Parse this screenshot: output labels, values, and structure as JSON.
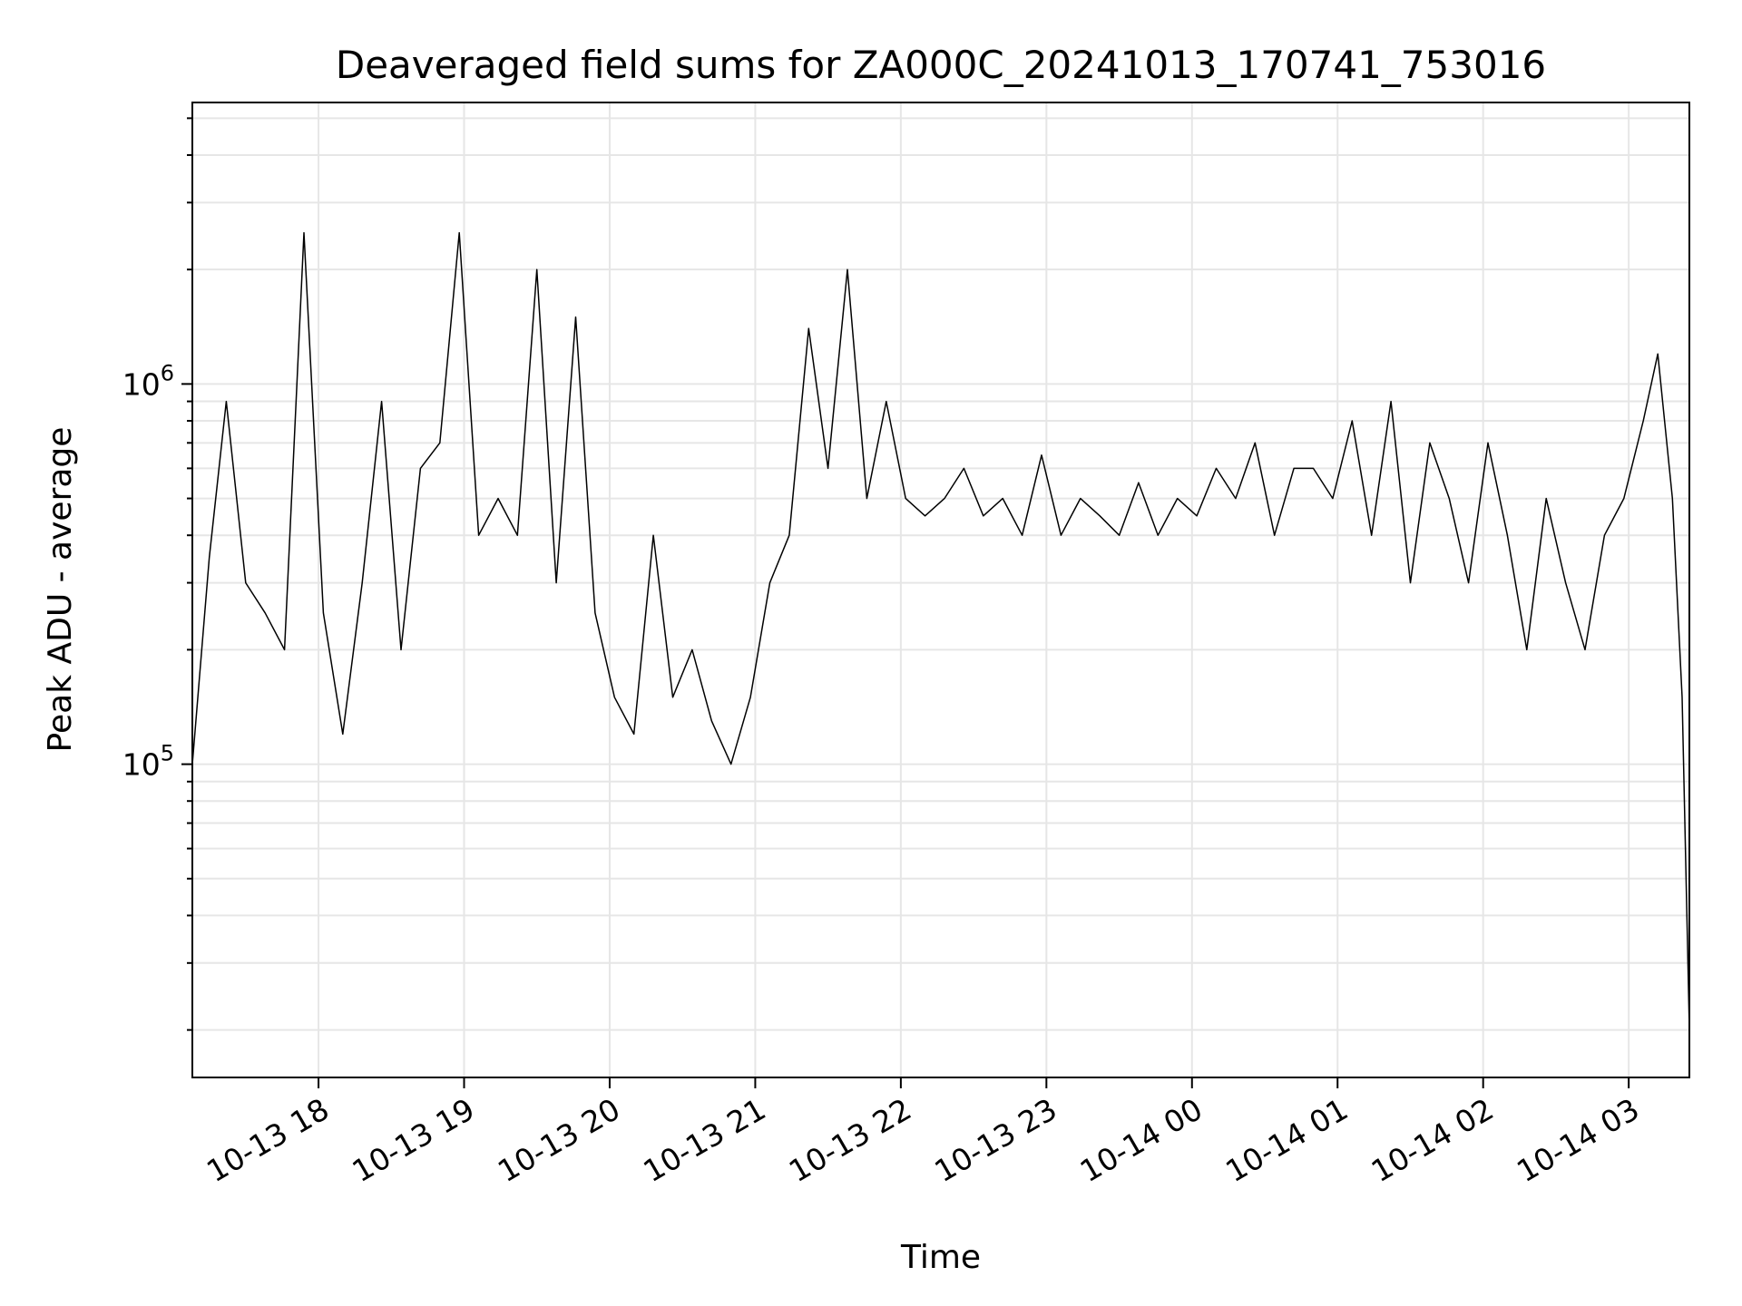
{
  "chart_data": {
    "type": "line",
    "title": "Deaveraged field sums for ZA000C_20241013_170741_753016",
    "xlabel": "Time",
    "ylabel": "Peak ADU - average",
    "yscale": "log",
    "grid": true,
    "x_range": [
      "2024-10-13 17:08",
      "2024-10-14 03:25"
    ],
    "ylim": [
      15000,
      5500000
    ],
    "x_ticks": [
      {
        "value": "2024-10-13 18:00",
        "label": "10-13 18"
      },
      {
        "value": "2024-10-13 19:00",
        "label": "10-13 19"
      },
      {
        "value": "2024-10-13 20:00",
        "label": "10-13 20"
      },
      {
        "value": "2024-10-13 21:00",
        "label": "10-13 21"
      },
      {
        "value": "2024-10-13 22:00",
        "label": "10-13 22"
      },
      {
        "value": "2024-10-13 23:00",
        "label": "10-13 23"
      },
      {
        "value": "2024-10-14 00:00",
        "label": "10-14 00"
      },
      {
        "value": "2024-10-14 01:00",
        "label": "10-14 01"
      },
      {
        "value": "2024-10-14 02:00",
        "label": "10-14 02"
      },
      {
        "value": "2024-10-14 03:00",
        "label": "10-14 03"
      }
    ],
    "y_ticks": [
      {
        "value": 100000,
        "base": "10",
        "exp": "5"
      },
      {
        "value": 1000000,
        "base": "10",
        "exp": "6"
      }
    ],
    "line_color": "#000000",
    "grid_color": "#e6e6e6",
    "series": [
      {
        "x": [
          "2024-10-13 17:08",
          "2024-10-13 17:15",
          "2024-10-13 17:22",
          "2024-10-13 17:30",
          "2024-10-13 17:38",
          "2024-10-13 17:46",
          "2024-10-13 17:54",
          "2024-10-13 18:02",
          "2024-10-13 18:10",
          "2024-10-13 18:18",
          "2024-10-13 18:26",
          "2024-10-13 18:34",
          "2024-10-13 18:42",
          "2024-10-13 18:50",
          "2024-10-13 18:58",
          "2024-10-13 19:06",
          "2024-10-13 19:14",
          "2024-10-13 19:22",
          "2024-10-13 19:30",
          "2024-10-13 19:38",
          "2024-10-13 19:46",
          "2024-10-13 19:54",
          "2024-10-13 20:02",
          "2024-10-13 20:10",
          "2024-10-13 20:18",
          "2024-10-13 20:26",
          "2024-10-13 20:34",
          "2024-10-13 20:42",
          "2024-10-13 20:50",
          "2024-10-13 20:58",
          "2024-10-13 21:06",
          "2024-10-13 21:14",
          "2024-10-13 21:22",
          "2024-10-13 21:30",
          "2024-10-13 21:38",
          "2024-10-13 21:46",
          "2024-10-13 21:54",
          "2024-10-13 22:02",
          "2024-10-13 22:10",
          "2024-10-13 22:18",
          "2024-10-13 22:26",
          "2024-10-13 22:34",
          "2024-10-13 22:42",
          "2024-10-13 22:50",
          "2024-10-13 22:58",
          "2024-10-13 23:06",
          "2024-10-13 23:14",
          "2024-10-13 23:22",
          "2024-10-13 23:30",
          "2024-10-13 23:38",
          "2024-10-13 23:46",
          "2024-10-13 23:54",
          "2024-10-14 00:02",
          "2024-10-14 00:10",
          "2024-10-14 00:18",
          "2024-10-14 00:26",
          "2024-10-14 00:34",
          "2024-10-14 00:42",
          "2024-10-14 00:50",
          "2024-10-14 00:58",
          "2024-10-14 01:06",
          "2024-10-14 01:14",
          "2024-10-14 01:22",
          "2024-10-14 01:30",
          "2024-10-14 01:38",
          "2024-10-14 01:46",
          "2024-10-14 01:54",
          "2024-10-14 02:02",
          "2024-10-14 02:10",
          "2024-10-14 02:18",
          "2024-10-14 02:26",
          "2024-10-14 02:34",
          "2024-10-14 02:42",
          "2024-10-14 02:50",
          "2024-10-14 02:58",
          "2024-10-14 03:06",
          "2024-10-14 03:12",
          "2024-10-14 03:18",
          "2024-10-14 03:22",
          "2024-10-14 03:25"
        ],
        "y": [
          100000,
          350000,
          900000,
          300000,
          250000,
          200000,
          2500000,
          250000,
          120000,
          300000,
          900000,
          200000,
          600000,
          700000,
          2500000,
          400000,
          500000,
          400000,
          2000000,
          300000,
          1500000,
          250000,
          150000,
          120000,
          400000,
          150000,
          200000,
          130000,
          100000,
          150000,
          300000,
          400000,
          1400000,
          600000,
          2000000,
          500000,
          900000,
          500000,
          450000,
          500000,
          600000,
          450000,
          500000,
          400000,
          650000,
          400000,
          500000,
          450000,
          400000,
          550000,
          400000,
          500000,
          450000,
          600000,
          500000,
          700000,
          400000,
          600000,
          600000,
          500000,
          800000,
          400000,
          900000,
          300000,
          700000,
          500000,
          300000,
          700000,
          400000,
          200000,
          500000,
          300000,
          200000,
          400000,
          500000,
          800000,
          1200000,
          500000,
          150000,
          20000
        ]
      }
    ]
  }
}
